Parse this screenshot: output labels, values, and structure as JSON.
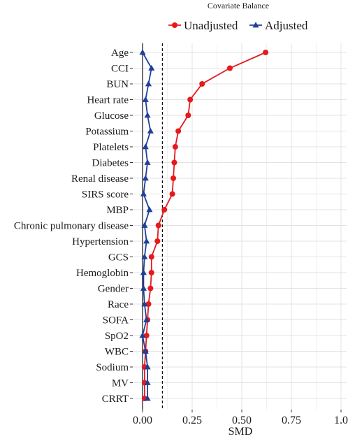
{
  "chart_data": {
    "type": "line",
    "title": "Covariate Balance",
    "xlabel": "SMD",
    "ylabel": "",
    "xlim": [
      0,
      1
    ],
    "xticks": [
      0,
      0.25,
      0.5,
      0.75,
      1
    ],
    "xtick_labels": [
      "0.00",
      "0.25",
      "0.50",
      "0.75",
      "1.0"
    ],
    "threshold": 0.1,
    "legend_position": "top",
    "grid": true,
    "categories": [
      "Age",
      "CCI",
      "BUN",
      "Heart rate",
      "Glucose",
      "Potassium",
      "Platelets",
      "Diabetes",
      "Renal disease",
      "SIRS score",
      "MBP",
      "Chronic pulmonary disease",
      "Hypertension",
      "GCS",
      "Hemoglobin",
      "Gender",
      "Race",
      "SOFA",
      "SpO2",
      "WBC",
      "Sodium",
      "MV",
      "CRRT"
    ],
    "series": [
      {
        "name": "Unadjusted",
        "color": "#e41a1c",
        "marker": "circle",
        "values": [
          0.62,
          0.44,
          0.3,
          0.24,
          0.23,
          0.18,
          0.165,
          0.16,
          0.155,
          0.15,
          0.11,
          0.08,
          0.075,
          0.045,
          0.045,
          0.04,
          0.03,
          0.025,
          0.02,
          0.015,
          0.01,
          0.01,
          0.01
        ]
      },
      {
        "name": "Adjusted",
        "color": "#1f3f99",
        "marker": "triangle",
        "values": [
          0.0,
          0.045,
          0.03,
          0.015,
          0.025,
          0.04,
          0.015,
          0.025,
          0.015,
          0.005,
          0.035,
          0.01,
          0.02,
          0.01,
          0.005,
          0.005,
          0.01,
          0.02,
          0.0,
          0.015,
          0.025,
          0.025,
          0.025
        ]
      }
    ]
  }
}
